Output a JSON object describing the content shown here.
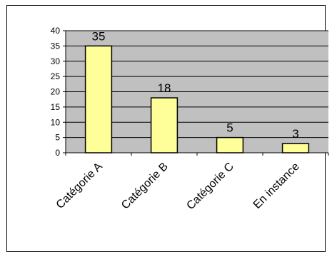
{
  "chart_data": {
    "type": "bar",
    "categories": [
      "Catégorie A",
      "Catégorie B",
      "Catégorie C",
      "En instance"
    ],
    "values": [
      35,
      18,
      5,
      3
    ],
    "data_labels": [
      "35",
      "18",
      "5",
      "3"
    ],
    "yticks": [
      "0",
      "5",
      "10",
      "15",
      "20",
      "25",
      "30",
      "35",
      "40"
    ],
    "ylim": [
      0,
      40
    ],
    "grid": true,
    "legend": "none",
    "title": "",
    "xlabel": "",
    "ylabel": "",
    "colors": {
      "plot_background": "#c0c0c0",
      "bar_fill": "#ffff99",
      "bar_stroke": "#000000",
      "gridline": "#000000"
    }
  }
}
